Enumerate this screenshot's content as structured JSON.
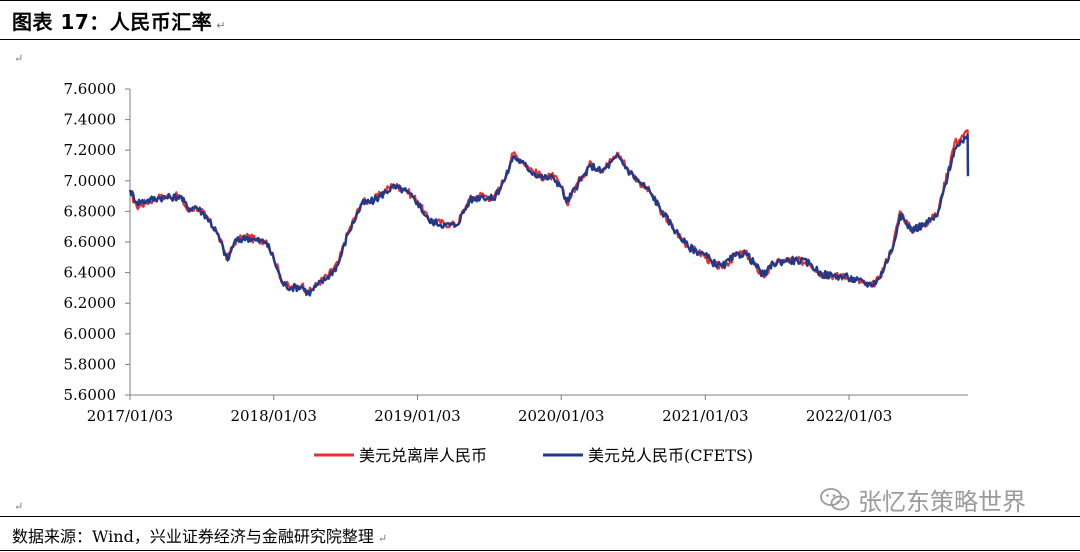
{
  "title": "图表 17：人民币汇率",
  "para_mark": "↵",
  "source": "数据来源：Wind，兴业证券经济与金融研究院整理",
  "watermark": "张忆东策略世界",
  "watermark_icon": "wechat-icon",
  "chart_data": {
    "type": "line",
    "title": "",
    "xlabel": "",
    "ylabel": "",
    "ylim": [
      5.6,
      7.6
    ],
    "yticks": [
      "7.6000",
      "7.4000",
      "7.2000",
      "7.0000",
      "6.8000",
      "6.6000",
      "6.4000",
      "6.2000",
      "6.0000",
      "5.8000",
      "5.6000"
    ],
    "xrange": [
      "2017/01/03",
      "2022/11/01"
    ],
    "xticks": [
      "2017/01/03",
      "2018/01/03",
      "2019/01/03",
      "2020/01/03",
      "2021/01/03",
      "2022/01/03"
    ],
    "grid": false,
    "legend_position": "bottom-center",
    "series": [
      {
        "name": "美元兑离岸人民币",
        "color": "#e8312f",
        "points": [
          [
            "2017/01/03",
            6.93
          ],
          [
            "2017/01/20",
            6.83
          ],
          [
            "2017/02/15",
            6.86
          ],
          [
            "2017/03/15",
            6.89
          ],
          [
            "2017/04/15",
            6.9
          ],
          [
            "2017/05/10",
            6.9
          ],
          [
            "2017/05/31",
            6.8
          ],
          [
            "2017/06/20",
            6.83
          ],
          [
            "2017/07/15",
            6.77
          ],
          [
            "2017/08/10",
            6.67
          ],
          [
            "2017/09/08",
            6.49
          ],
          [
            "2017/09/25",
            6.6
          ],
          [
            "2017/10/25",
            6.64
          ],
          [
            "2017/11/20",
            6.61
          ],
          [
            "2017/12/15",
            6.61
          ],
          [
            "2018/01/03",
            6.5
          ],
          [
            "2018/01/25",
            6.34
          ],
          [
            "2018/02/15",
            6.3
          ],
          [
            "2018/03/15",
            6.32
          ],
          [
            "2018/04/02",
            6.27
          ],
          [
            "2018/04/25",
            6.33
          ],
          [
            "2018/05/20",
            6.38
          ],
          [
            "2018/06/15",
            6.46
          ],
          [
            "2018/07/10",
            6.66
          ],
          [
            "2018/08/15",
            6.86
          ],
          [
            "2018/09/15",
            6.88
          ],
          [
            "2018/10/31",
            6.97
          ],
          [
            "2018/11/30",
            6.95
          ],
          [
            "2019/01/03",
            6.87
          ],
          [
            "2019/02/01",
            6.74
          ],
          [
            "2019/03/15",
            6.72
          ],
          [
            "2019/04/12",
            6.71
          ],
          [
            "2019/05/15",
            6.88
          ],
          [
            "2019/06/15",
            6.91
          ],
          [
            "2019/07/15",
            6.88
          ],
          [
            "2019/08/15",
            7.03
          ],
          [
            "2019/09/03",
            7.18
          ],
          [
            "2019/09/25",
            7.13
          ],
          [
            "2019/10/25",
            7.06
          ],
          [
            "2019/11/20",
            7.02
          ],
          [
            "2019/12/15",
            7.03
          ],
          [
            "2020/01/03",
            6.96
          ],
          [
            "2020/01/17",
            6.85
          ],
          [
            "2020/02/15",
            6.99
          ],
          [
            "2020/03/19",
            7.12
          ],
          [
            "2020/04/15",
            7.07
          ],
          [
            "2020/05/27",
            7.18
          ],
          [
            "2020/06/20",
            7.08
          ],
          [
            "2020/07/20",
            6.99
          ],
          [
            "2020/08/15",
            6.93
          ],
          [
            "2020/09/15",
            6.79
          ],
          [
            "2020/10/20",
            6.67
          ],
          [
            "2020/11/20",
            6.57
          ],
          [
            "2020/12/31",
            6.51
          ],
          [
            "2021/01/20",
            6.46
          ],
          [
            "2021/02/15",
            6.43
          ],
          [
            "2021/03/20",
            6.51
          ],
          [
            "2021/04/15",
            6.53
          ],
          [
            "2021/05/31",
            6.37
          ],
          [
            "2021/06/25",
            6.46
          ],
          [
            "2021/07/25",
            6.48
          ],
          [
            "2021/08/25",
            6.48
          ],
          [
            "2021/09/25",
            6.46
          ],
          [
            "2021/10/25",
            6.39
          ],
          [
            "2021/11/25",
            6.38
          ],
          [
            "2021/12/31",
            6.37
          ],
          [
            "2022/01/20",
            6.35
          ],
          [
            "2022/02/28",
            6.31
          ],
          [
            "2022/03/20",
            6.36
          ],
          [
            "2022/04/25",
            6.58
          ],
          [
            "2022/05/12",
            6.8
          ],
          [
            "2022/06/10",
            6.68
          ],
          [
            "2022/07/10",
            6.71
          ],
          [
            "2022/08/15",
            6.78
          ],
          [
            "2022/09/28",
            7.25
          ],
          [
            "2022/10/20",
            7.29
          ],
          [
            "2022/10/31",
            7.33
          ],
          [
            "2022/11/01",
            7.04
          ]
        ]
      },
      {
        "name": "美元兑人民币(CFETS)",
        "color": "#1f3a8a",
        "points": [
          [
            "2017/01/03",
            6.94
          ],
          [
            "2017/01/20",
            6.86
          ],
          [
            "2017/02/15",
            6.87
          ],
          [
            "2017/03/15",
            6.89
          ],
          [
            "2017/04/15",
            6.89
          ],
          [
            "2017/05/10",
            6.9
          ],
          [
            "2017/05/31",
            6.82
          ],
          [
            "2017/06/20",
            6.83
          ],
          [
            "2017/07/15",
            6.77
          ],
          [
            "2017/08/10",
            6.67
          ],
          [
            "2017/09/08",
            6.48
          ],
          [
            "2017/09/25",
            6.6
          ],
          [
            "2017/10/25",
            6.63
          ],
          [
            "2017/11/20",
            6.61
          ],
          [
            "2017/12/15",
            6.6
          ],
          [
            "2018/01/03",
            6.49
          ],
          [
            "2018/01/25",
            6.33
          ],
          [
            "2018/02/15",
            6.3
          ],
          [
            "2018/03/15",
            6.31
          ],
          [
            "2018/04/02",
            6.26
          ],
          [
            "2018/04/25",
            6.32
          ],
          [
            "2018/05/20",
            6.37
          ],
          [
            "2018/06/15",
            6.45
          ],
          [
            "2018/07/10",
            6.65
          ],
          [
            "2018/08/15",
            6.85
          ],
          [
            "2018/09/15",
            6.87
          ],
          [
            "2018/10/31",
            6.96
          ],
          [
            "2018/11/30",
            6.94
          ],
          [
            "2019/01/03",
            6.86
          ],
          [
            "2019/02/01",
            6.74
          ],
          [
            "2019/03/15",
            6.71
          ],
          [
            "2019/04/12",
            6.71
          ],
          [
            "2019/05/15",
            6.87
          ],
          [
            "2019/06/15",
            6.9
          ],
          [
            "2019/07/15",
            6.88
          ],
          [
            "2019/08/15",
            7.02
          ],
          [
            "2019/09/03",
            7.16
          ],
          [
            "2019/09/25",
            7.12
          ],
          [
            "2019/10/25",
            7.05
          ],
          [
            "2019/11/20",
            7.02
          ],
          [
            "2019/12/15",
            7.02
          ],
          [
            "2020/01/03",
            6.96
          ],
          [
            "2020/01/17",
            6.86
          ],
          [
            "2020/02/15",
            6.98
          ],
          [
            "2020/03/19",
            7.1
          ],
          [
            "2020/04/15",
            7.06
          ],
          [
            "2020/05/27",
            7.16
          ],
          [
            "2020/06/20",
            7.07
          ],
          [
            "2020/07/20",
            6.99
          ],
          [
            "2020/08/15",
            6.93
          ],
          [
            "2020/09/15",
            6.8
          ],
          [
            "2020/10/20",
            6.67
          ],
          [
            "2020/11/20",
            6.57
          ],
          [
            "2020/12/31",
            6.52
          ],
          [
            "2021/01/20",
            6.47
          ],
          [
            "2021/02/15",
            6.44
          ],
          [
            "2021/03/20",
            6.51
          ],
          [
            "2021/04/15",
            6.53
          ],
          [
            "2021/05/31",
            6.38
          ],
          [
            "2021/06/25",
            6.46
          ],
          [
            "2021/07/25",
            6.48
          ],
          [
            "2021/08/25",
            6.48
          ],
          [
            "2021/09/25",
            6.46
          ],
          [
            "2021/10/25",
            6.39
          ],
          [
            "2021/11/25",
            6.38
          ],
          [
            "2021/12/31",
            6.37
          ],
          [
            "2022/01/20",
            6.35
          ],
          [
            "2022/02/28",
            6.32
          ],
          [
            "2022/03/20",
            6.36
          ],
          [
            "2022/04/25",
            6.57
          ],
          [
            "2022/05/12",
            6.78
          ],
          [
            "2022/06/10",
            6.68
          ],
          [
            "2022/07/10",
            6.71
          ],
          [
            "2022/08/15",
            6.77
          ],
          [
            "2022/09/28",
            7.21
          ],
          [
            "2022/10/20",
            7.25
          ],
          [
            "2022/10/31",
            7.3
          ],
          [
            "2022/11/01",
            7.03
          ]
        ]
      }
    ]
  }
}
